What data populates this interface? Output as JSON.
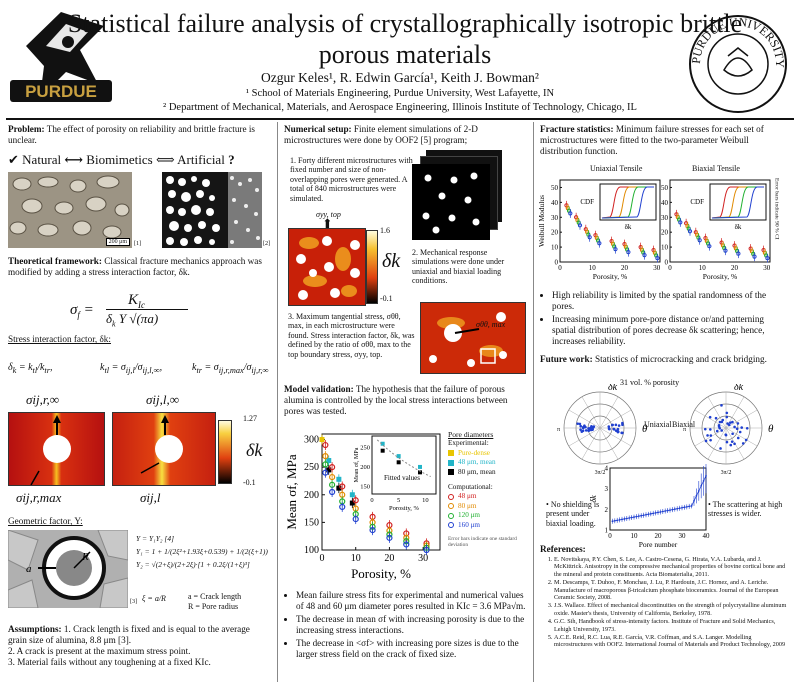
{
  "header": {
    "title": "Statistical failure analysis of crystallographically isotropic brittle porous materials",
    "authors": "Ozgur Keles¹, R. Edwin García¹, Keith J. Bowman²",
    "affil1": "¹ School of Materials Engineering, Purdue University, West Lafayette, IN",
    "affil2": "² Department of Mechanical, Materials, and Aerospace Engineering, Illinois Institute of Technology, Chicago, IL",
    "logo_left_text": "PURDUE",
    "seal_text": "PURDUE UNIVERSITY"
  },
  "col1": {
    "problem_head": "Problem:",
    "problem_text": "The effect of porosity on reliability and brittle fracture is unclear.",
    "natural": "Natural",
    "biomimetics": "Biomimetics",
    "artificial": "Artificial",
    "scale_bar": "200 μm",
    "ref1": "[1]",
    "ref2": "[2]",
    "theory_head": "Theoretical framework:",
    "theory_text": "Classical fracture mechanics approach was modified by adding a stress interaction factor, δk.",
    "sif_head": "Stress interaction factor, δk:",
    "hm_max": "1.27",
    "hm_min": "-0.1",
    "hm_label": "δk",
    "lbl_top_left": "σij,r,∞",
    "lbl_top_right": "σij,l,∞",
    "lbl_bot_left": "σij,r,max",
    "lbl_bot_right": "σij,l",
    "geo_head": "Geometric factor, Y:",
    "geo_ref": "[3]",
    "geo_a": "a = Crack length",
    "geo_R": "R = Pore radius",
    "assump_head": "Assumptions:",
    "assump1": "1. Crack length is fixed and is equal to the average grain size of alumina, 8.8 μm [3].",
    "assump2": "2. A crack is present at the maximum stress point.",
    "assump3": "3. Material fails without any toughening at a fixed KIc."
  },
  "col2": {
    "setup_head": "Numerical setup:",
    "setup_text": "Finite element simulations of 2-D microstructures were done by OOF2 [5] program;",
    "step1": "1. Forty different microstructures with fixed number and size of non-overlapping pores were generated. A total of 840 microstructures were simulated.",
    "step2": "2. Mechanical response simulations were done under uniaxial and biaxial loading conditions.",
    "step3": "3. Maximum tangential stress, σθθ, max, in each microstructure were found. Stress interaction factor, δk, was defined by the ratio of σθθ, max to the top boundary stress, σyy, top.",
    "sigma_top": "σyy, top",
    "sigma_max": "σθθ, max",
    "hm_max": "1.6",
    "hm_min": "-0.1",
    "hm_label": "δk",
    "valid_head": "Model validation:",
    "valid_text": "The hypothesis that the failure of porous alumina is controlled by the local stress interactions between pores was tested.",
    "bullet1": "Mean failure stress fits for experimental and numerical values of 48 and 60 μm diameter pores resulted in KIc = 3.6 MPa√m.",
    "bullet2": "The decrease in mean σf with increasing porosity is due to the increasing stress interactions.",
    "bullet3": "The decrease in <σf> with increasing pore sizes is due to the larger stress field on the crack of fixed size."
  },
  "col3": {
    "stats_head": "Fracture statistics:",
    "stats_text": "Minimum failure stresses for each set of microstructures were fitted to the two-parameter Weibull distribution function.",
    "uni_title": "Uniaxial Tensile",
    "bi_title": "Biaxial Tensile",
    "cdf_label": "CDF",
    "dk_label": "δk",
    "error_note": "Error bars indicate 90 % CI",
    "bullet1": "High reliability is limited by the spatial randomness of the pores.",
    "bullet2": "Increasing minimum pore-pore distance or/and patterning spatial distribution of pores decrease δk scattering; hence, increases reliability.",
    "future_head": "Future work:",
    "future_text": "Statistics of microcracking and crack bridging.",
    "porosity_note": "31 vol. % porosity",
    "polar_uni": "Uniaxial",
    "polar_bi": "Biaxial",
    "theta": "θ",
    "dk": "δk",
    "ang_pi": "π",
    "ang_3pi2": "3π/2",
    "ang_pi2": "π/2",
    "ang_0": "0",
    "note1": "No shielding is present under biaxial loading.",
    "note2": "The scattering at high stresses is wider.",
    "pore_xlabel": "Pore number",
    "pore_ylabel": "δk",
    "refs_head": "References:",
    "refs": [
      "E. Novitskaya, P.Y. Chen, S. Lee, A. Castro-Cesena, G. Hirata, V.A. Lubarda, and J. McKittrick. Anisotropy in the compressive mechanical properties of bovine cortical bone and the mineral and protein constituents. Acta Biomaterialia, 2011.",
      "M. Descamps, T. Duhoo, F. Monchau, J. Lu, P. Hardouin, J.C. Hornez, and A. Leriche. Manufacture of macroporous β-tricalcium phosphate bioceramics. Journal of the European Ceramic Society, 2008.",
      "J.S. Wallace. Effect of mechanical discontinuities on the strength of polycrystalline aluminum oxide. Master's thesis, University of California, Berkeley, 1978.",
      "G.C. Sih, Handbook of stress-intensity factors. Institute of Fracture and Solid Mechanics, Lehigh University, 1973.",
      "A.C.E. Reid, R.C. Lua, R.E. García, V.R. Coffman, and S.A. Langer. Modelling microstructures with OOF2. International Journal of Materials and Product Technology, 2009"
    ]
  },
  "chart_data": [
    {
      "type": "scatter",
      "title": "",
      "xlabel": "Porosity, %",
      "ylabel": "Mean σf, MPa",
      "xlim": [
        0,
        35
      ],
      "ylim": [
        100,
        310
      ],
      "xticks": [
        0,
        10,
        20,
        30
      ],
      "yticks": [
        100,
        150,
        200,
        250,
        300
      ],
      "legend_title": "Pore diameters",
      "legend_exp_label": "Experimental:",
      "legend_comp_label": "Computational:",
      "legend_note": "Error bars indicate one standard deviation",
      "series": [
        {
          "name": "Pure-dense",
          "color": "#e8c500",
          "kind": "experimental",
          "x": [
            0
          ],
          "y": [
            300
          ]
        },
        {
          "name": "48 μm, mean",
          "color": "#22b5c8",
          "kind": "experimental",
          "x": [
            2,
            5,
            9
          ],
          "y": [
            262,
            228,
            200
          ]
        },
        {
          "name": "80 μm, mean",
          "color": "#000000",
          "kind": "experimental",
          "x": [
            2,
            5,
            9
          ],
          "y": [
            245,
            212,
            185
          ]
        },
        {
          "name": "48 μm",
          "color": "#d02020",
          "kind": "computational",
          "x": [
            1,
            3,
            6,
            10,
            15,
            20,
            25,
            31
          ],
          "y": [
            290,
            250,
            215,
            190,
            160,
            145,
            130,
            112
          ]
        },
        {
          "name": "80 μm",
          "color": "#e08a00",
          "kind": "computational",
          "x": [
            1,
            3,
            6,
            10,
            15,
            20,
            25,
            31
          ],
          "y": [
            270,
            232,
            200,
            175,
            150,
            135,
            122,
            108
          ]
        },
        {
          "name": "120 μm",
          "color": "#20b030",
          "kind": "computational",
          "x": [
            1,
            3,
            6,
            10,
            15,
            20,
            25,
            31
          ],
          "y": [
            255,
            218,
            188,
            165,
            142,
            128,
            116,
            104
          ]
        },
        {
          "name": "160 μm",
          "color": "#2040d0",
          "kind": "computational",
          "x": [
            1,
            3,
            6,
            10,
            15,
            20,
            25,
            31
          ],
          "y": [
            240,
            205,
            178,
            156,
            136,
            122,
            110,
            100
          ]
        }
      ],
      "inset": {
        "xlabel": "Porosity, %",
        "ylabel": "Mean σf, MPa",
        "xticks": [
          0,
          5,
          10
        ],
        "yticks": [
          150,
          200,
          250
        ],
        "annotation": "Fitted values"
      }
    },
    {
      "type": "scatter",
      "title": "Uniaxial Tensile",
      "xlabel": "Porosity, %",
      "ylabel": "Weibull Modulus",
      "xlim": [
        0,
        31
      ],
      "ylim": [
        0,
        55
      ],
      "xticks": [
        0,
        10,
        20,
        30
      ],
      "yticks": [
        0,
        10,
        20,
        30,
        40,
        50
      ]
    },
    {
      "type": "scatter",
      "title": "Biaxial Tensile",
      "xlabel": "Porosity, %",
      "ylabel": "",
      "xlim": [
        0,
        31
      ],
      "ylim": [
        0,
        55
      ],
      "xticks": [
        0,
        10,
        20,
        30
      ],
      "yticks": [
        0,
        10,
        20,
        30,
        40,
        50
      ]
    },
    {
      "type": "line",
      "title": "",
      "xlabel": "Pore number",
      "ylabel": "δk",
      "xlim": [
        0,
        40
      ],
      "ylim": [
        1,
        4
      ],
      "xticks": [
        0,
        10,
        20,
        30,
        40
      ],
      "yticks": [
        1,
        2,
        3,
        4
      ]
    }
  ]
}
